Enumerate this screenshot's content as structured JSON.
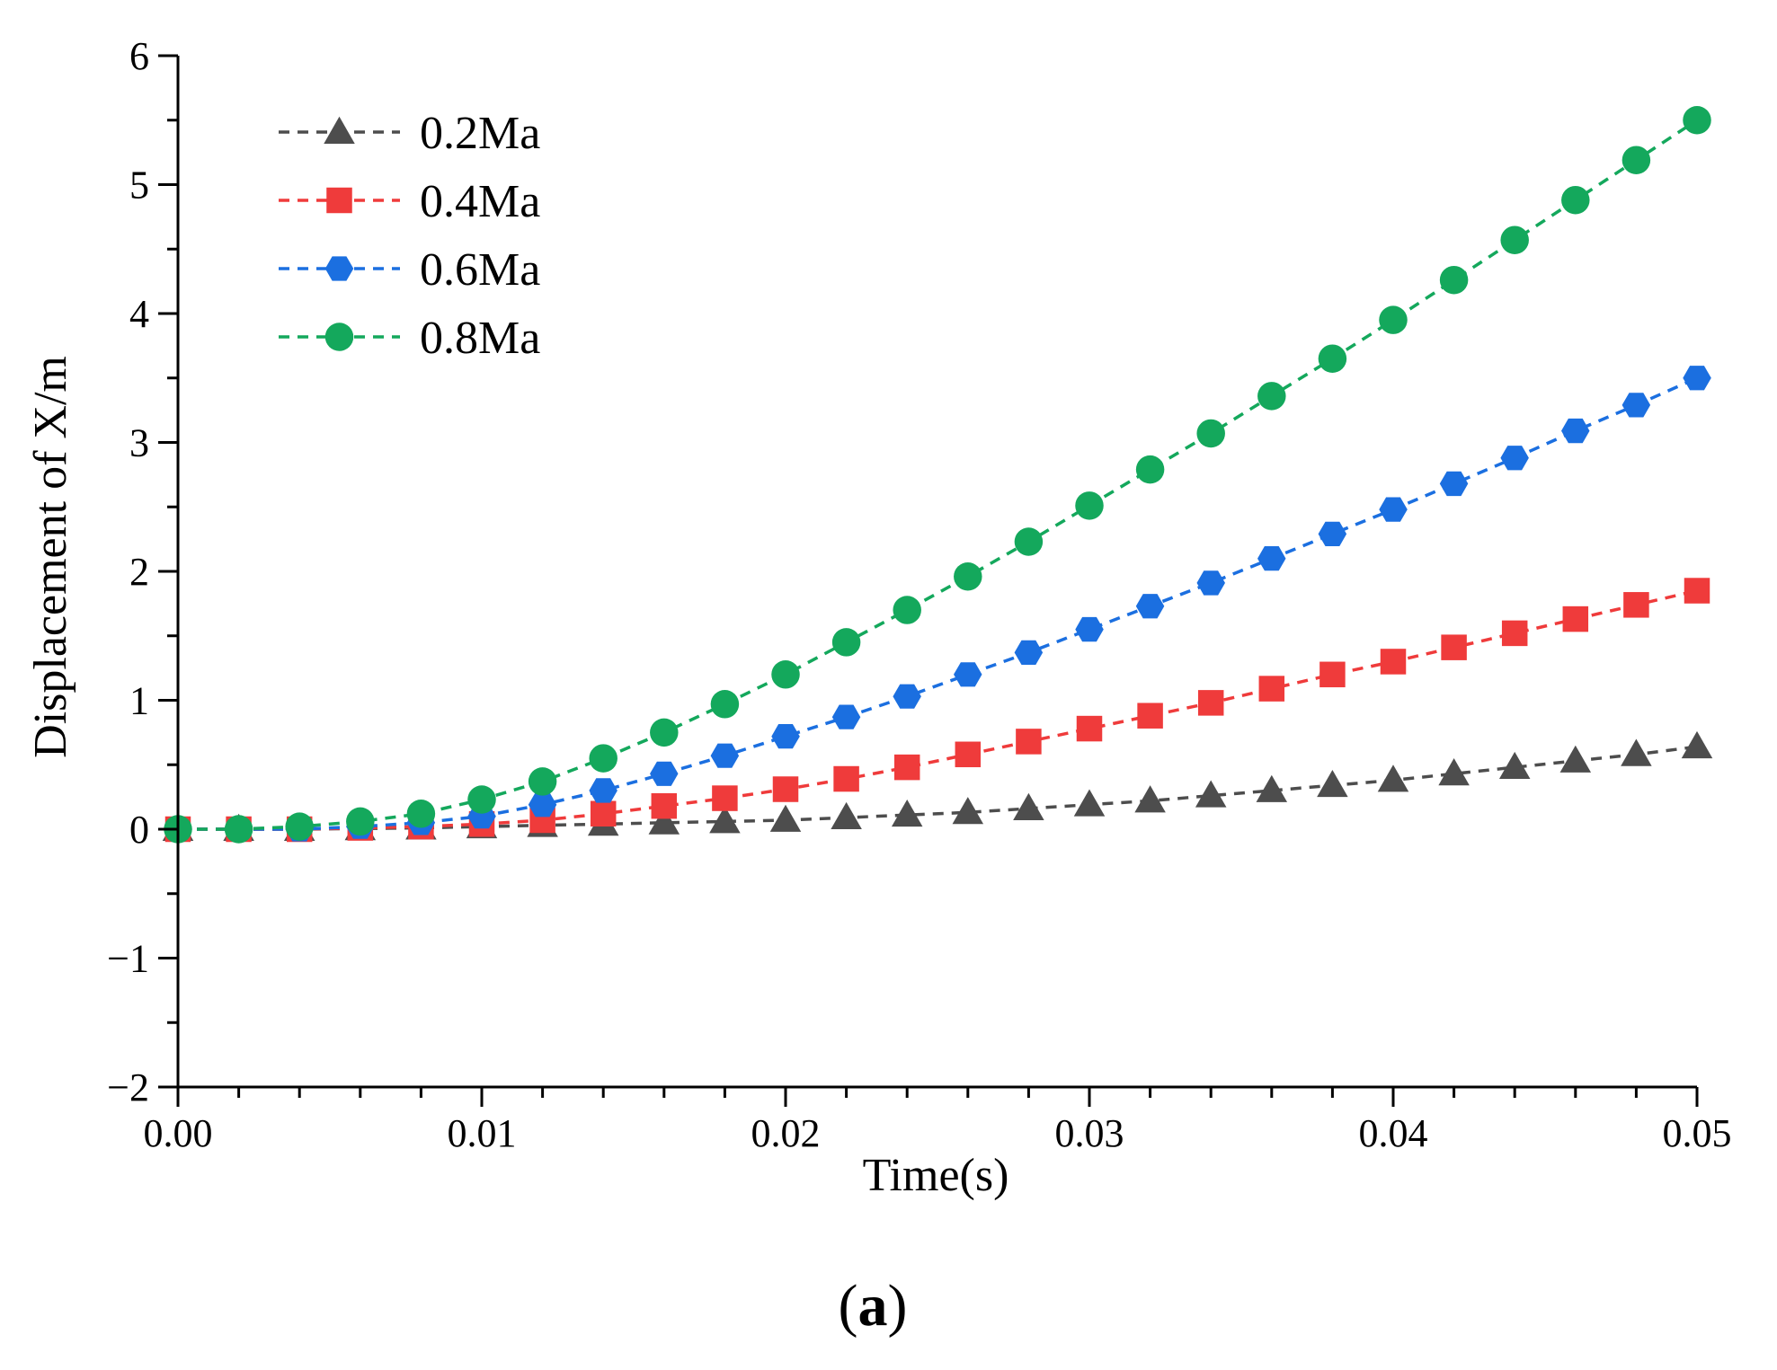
{
  "chart_data": {
    "type": "line",
    "title": "",
    "xlabel": "Time(s)",
    "ylabel": "Displacement of X/m",
    "xlim": [
      0,
      0.05
    ],
    "ylim": [
      -2,
      6
    ],
    "xticks": [
      "0.00",
      "0.01",
      "0.02",
      "0.03",
      "0.04",
      "0.05"
    ],
    "yticks": [
      "−2",
      "−1",
      "0",
      "1",
      "2",
      "3",
      "4",
      "5",
      "6"
    ],
    "x": [
      0,
      0.002,
      0.004,
      0.006,
      0.008,
      0.01,
      0.012,
      0.014,
      0.016,
      0.018,
      0.02,
      0.022,
      0.024,
      0.026,
      0.028,
      0.03,
      0.032,
      0.034,
      0.036,
      0.038,
      0.04,
      0.042,
      0.044,
      0.046,
      0.048,
      0.05
    ],
    "legend_position": "top-left",
    "line_style": "dashed",
    "series": [
      {
        "name": "0.2Ma",
        "marker": "triangle",
        "color": "#4d4d4d",
        "values": [
          0,
          0,
          0,
          0.005,
          0.01,
          0.02,
          0.03,
          0.04,
          0.05,
          0.06,
          0.07,
          0.09,
          0.11,
          0.13,
          0.16,
          0.19,
          0.22,
          0.26,
          0.3,
          0.34,
          0.38,
          0.43,
          0.48,
          0.53,
          0.58,
          0.64
        ]
      },
      {
        "name": "0.4Ma",
        "marker": "square",
        "color": "#ef3b3b",
        "values": [
          0,
          0,
          0,
          0.01,
          0.02,
          0.04,
          0.07,
          0.12,
          0.18,
          0.24,
          0.31,
          0.39,
          0.48,
          0.58,
          0.68,
          0.78,
          0.88,
          0.98,
          1.09,
          1.2,
          1.3,
          1.41,
          1.52,
          1.63,
          1.74,
          1.85
        ]
      },
      {
        "name": "0.6Ma",
        "marker": "hexagon",
        "color": "#1b6fe0",
        "values": [
          0,
          0,
          0,
          0.02,
          0.05,
          0.1,
          0.19,
          0.3,
          0.43,
          0.57,
          0.72,
          0.87,
          1.03,
          1.2,
          1.37,
          1.55,
          1.73,
          1.91,
          2.1,
          2.29,
          2.48,
          2.68,
          2.88,
          3.09,
          3.29,
          3.5
        ]
      },
      {
        "name": "0.8Ma",
        "marker": "circle",
        "color": "#14a85c",
        "values": [
          0,
          0,
          0.02,
          0.06,
          0.12,
          0.23,
          0.37,
          0.55,
          0.75,
          0.97,
          1.2,
          1.45,
          1.7,
          1.96,
          2.23,
          2.51,
          2.79,
          3.07,
          3.36,
          3.65,
          3.95,
          4.26,
          4.57,
          4.88,
          5.19,
          5.5
        ]
      }
    ]
  },
  "panel_label": {
    "open": "(",
    "letter": "a",
    "close": ")"
  }
}
